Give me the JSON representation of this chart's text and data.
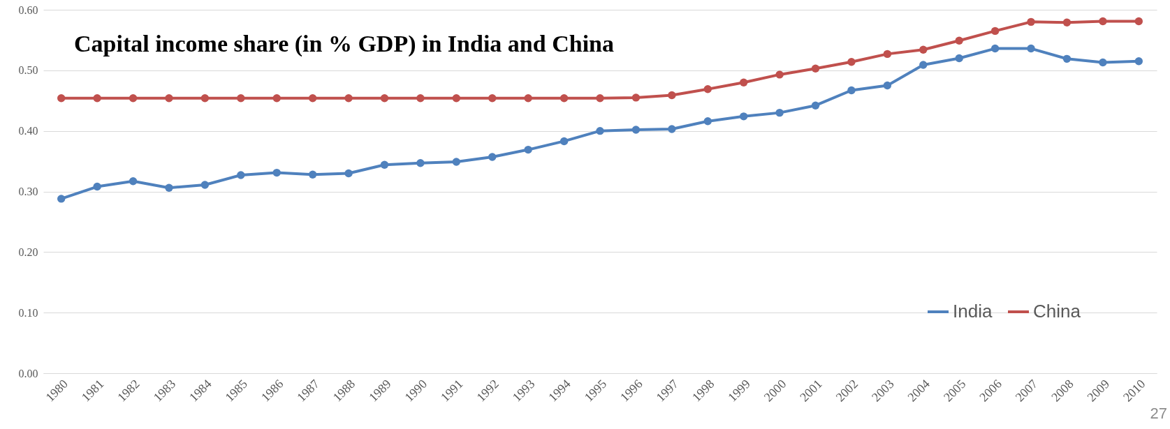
{
  "chart_data": {
    "type": "line",
    "title": "Capital income share (in % GDP) in India and China",
    "categories": [
      "1980",
      "1981",
      "1982",
      "1983",
      "1984",
      "1985",
      "1986",
      "1987",
      "1988",
      "1989",
      "1990",
      "1991",
      "1992",
      "1993",
      "1994",
      "1995",
      "1996",
      "1997",
      "1998",
      "1999",
      "2000",
      "2001",
      "2002",
      "2003",
      "2004",
      "2005",
      "2006",
      "2007",
      "2008",
      "2009",
      "2010"
    ],
    "series": [
      {
        "name": "India",
        "color": "#4f81bd",
        "values": [
          0.288,
          0.308,
          0.317,
          0.306,
          0.311,
          0.327,
          0.331,
          0.328,
          0.33,
          0.344,
          0.347,
          0.349,
          0.357,
          0.369,
          0.383,
          0.4,
          0.402,
          0.403,
          0.416,
          0.424,
          0.43,
          0.442,
          0.467,
          0.475,
          0.509,
          0.52,
          0.536,
          0.536,
          0.519,
          0.513,
          0.515
        ]
      },
      {
        "name": "China",
        "color": "#c0504d",
        "values": [
          0.454,
          0.454,
          0.454,
          0.454,
          0.454,
          0.454,
          0.454,
          0.454,
          0.454,
          0.454,
          0.454,
          0.454,
          0.454,
          0.454,
          0.454,
          0.454,
          0.455,
          0.459,
          0.469,
          0.48,
          0.493,
          0.503,
          0.514,
          0.527,
          0.534,
          0.549,
          0.565,
          0.58,
          0.579,
          0.581,
          0.581
        ]
      }
    ],
    "ylim": [
      0,
      0.6
    ],
    "yticks": [
      {
        "value": 0,
        "label": "0.00"
      },
      {
        "value": 0.1,
        "label": "0.10"
      },
      {
        "value": 0.2,
        "label": "0.20"
      },
      {
        "value": 0.3,
        "label": "0.30"
      },
      {
        "value": 0.4,
        "label": "0.40"
      },
      {
        "value": 0.5,
        "label": "0.50"
      },
      {
        "value": 0.6,
        "label": "0.60"
      }
    ],
    "grid": "y",
    "legend": "bottom right",
    "marker": "circle",
    "line_style": "solid",
    "annotations": [
      "27"
    ]
  }
}
